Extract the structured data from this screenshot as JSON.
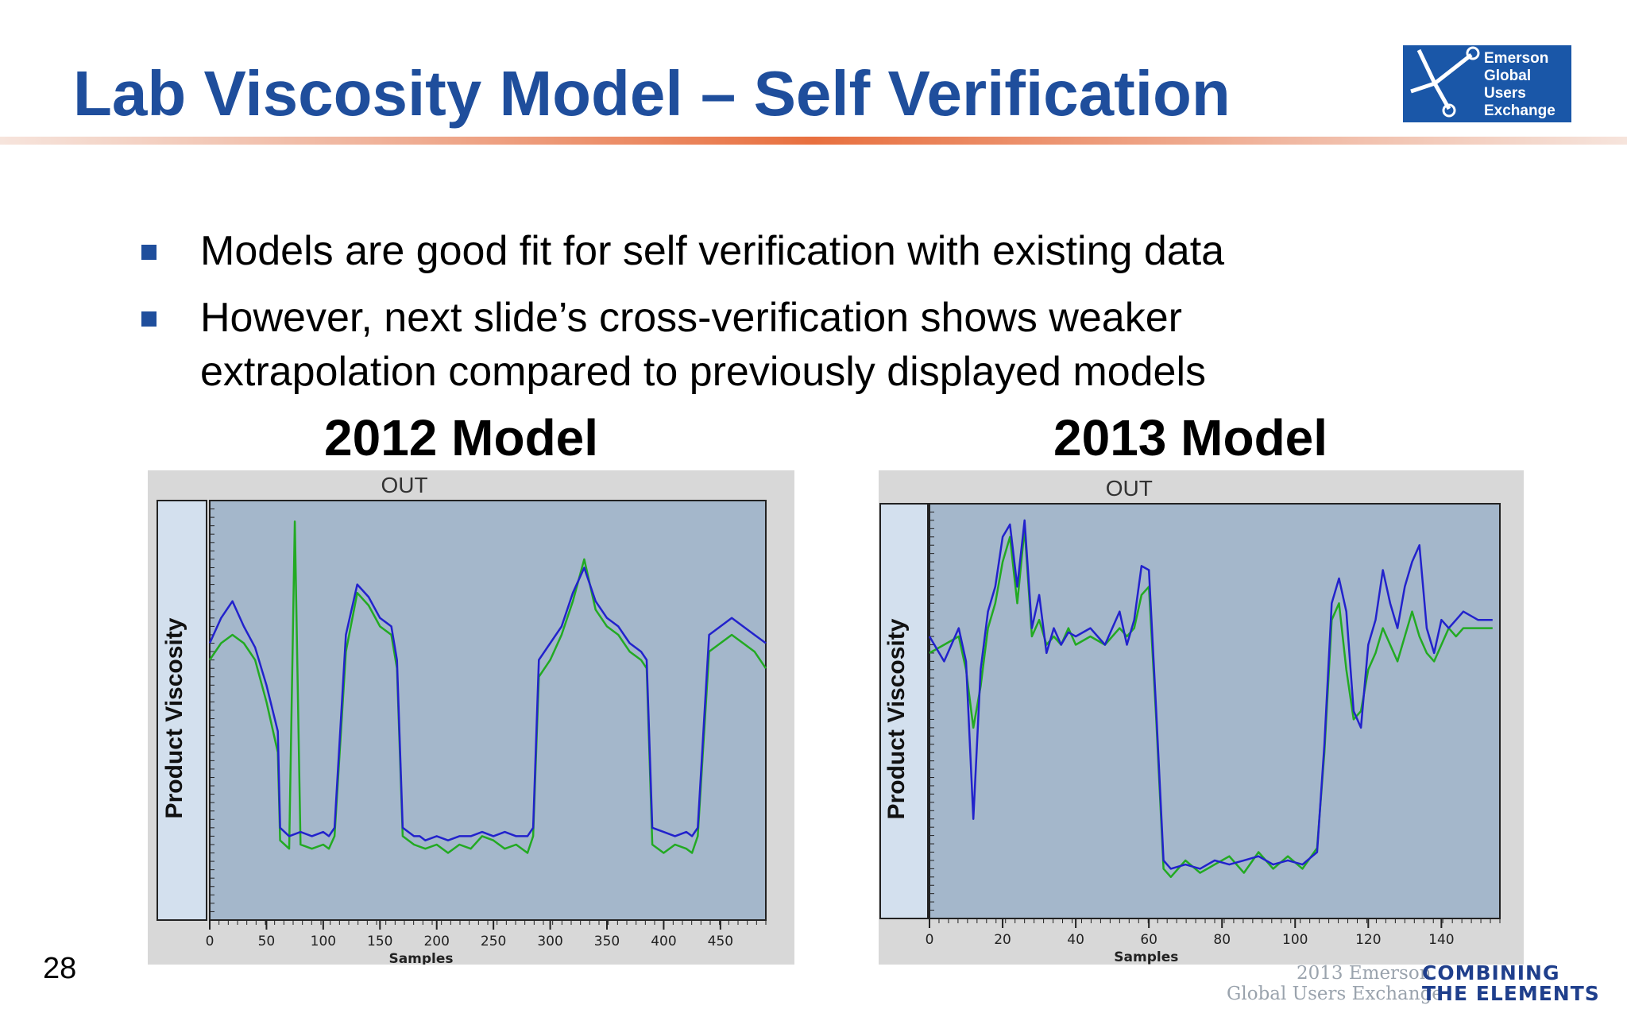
{
  "slide": {
    "title": "Lab Viscosity Model – Self Verification",
    "number": "28"
  },
  "logo": {
    "lines": [
      "Emerson",
      "Global",
      "Users",
      "Exchange"
    ],
    "color": "#1a57a8"
  },
  "bullets": [
    "Models are good fit for self verification with existing data",
    "However, next slide’s cross-verification shows weaker extrapolation compared to previously displayed models"
  ],
  "footer": {
    "line1": "2013 Emerson",
    "line2": "Global Users Exchange",
    "tag1": "COMBINING",
    "tag2": "THE ELEMENTS"
  },
  "chart_data": [
    {
      "type": "line",
      "heading": "2012 Model",
      "title": "OUT",
      "xlabel": "Samples",
      "ylabel": "Product Viscosity",
      "xlim": [
        0,
        490
      ],
      "ylim": [
        0,
        1
      ],
      "xticks": [
        0,
        50,
        100,
        150,
        200,
        250,
        300,
        350,
        400,
        450
      ],
      "grid": false,
      "background": "#a4b7cb",
      "series": [
        {
          "color": "#2222cc",
          "x": [
            0,
            10,
            20,
            30,
            40,
            50,
            60,
            62,
            70,
            80,
            90,
            100,
            105,
            110,
            120,
            130,
            140,
            150,
            160,
            165,
            170,
            180,
            185,
            190,
            200,
            210,
            220,
            230,
            240,
            250,
            260,
            270,
            280,
            285,
            290,
            300,
            310,
            320,
            330,
            340,
            350,
            360,
            370,
            380,
            385,
            390,
            400,
            410,
            420,
            425,
            430,
            440,
            450,
            460,
            470,
            480,
            490
          ],
          "y": [
            0.66,
            0.72,
            0.76,
            0.7,
            0.65,
            0.56,
            0.45,
            0.22,
            0.2,
            0.21,
            0.2,
            0.21,
            0.2,
            0.22,
            0.68,
            0.8,
            0.77,
            0.72,
            0.7,
            0.62,
            0.22,
            0.2,
            0.2,
            0.19,
            0.2,
            0.19,
            0.2,
            0.2,
            0.21,
            0.2,
            0.21,
            0.2,
            0.2,
            0.22,
            0.62,
            0.66,
            0.7,
            0.78,
            0.84,
            0.76,
            0.72,
            0.7,
            0.66,
            0.64,
            0.62,
            0.22,
            0.21,
            0.2,
            0.21,
            0.2,
            0.22,
            0.68,
            0.7,
            0.72,
            0.7,
            0.68,
            0.66
          ]
        },
        {
          "color": "#22aa22",
          "x": [
            0,
            10,
            20,
            30,
            40,
            50,
            60,
            62,
            70,
            75,
            80,
            90,
            100,
            105,
            110,
            120,
            130,
            140,
            150,
            160,
            165,
            170,
            180,
            190,
            200,
            210,
            220,
            230,
            240,
            250,
            260,
            270,
            280,
            285,
            290,
            300,
            310,
            320,
            330,
            340,
            350,
            360,
            370,
            380,
            385,
            390,
            400,
            410,
            420,
            425,
            430,
            440,
            450,
            460,
            470,
            480,
            490
          ],
          "y": [
            0.62,
            0.66,
            0.68,
            0.66,
            0.62,
            0.52,
            0.4,
            0.19,
            0.17,
            0.95,
            0.18,
            0.17,
            0.18,
            0.17,
            0.2,
            0.64,
            0.78,
            0.75,
            0.7,
            0.68,
            0.6,
            0.2,
            0.18,
            0.17,
            0.18,
            0.16,
            0.18,
            0.17,
            0.2,
            0.19,
            0.17,
            0.18,
            0.16,
            0.2,
            0.58,
            0.62,
            0.68,
            0.76,
            0.86,
            0.74,
            0.7,
            0.68,
            0.64,
            0.62,
            0.6,
            0.18,
            0.16,
            0.18,
            0.17,
            0.16,
            0.2,
            0.64,
            0.66,
            0.68,
            0.66,
            0.64,
            0.6
          ]
        }
      ]
    },
    {
      "type": "line",
      "heading": "2013 Model",
      "title": "OUT",
      "xlabel": "Samples",
      "ylabel": "Product Viscosity",
      "xlim": [
        0,
        156
      ],
      "ylim": [
        0,
        1
      ],
      "xticks": [
        0,
        20,
        40,
        60,
        80,
        100,
        120,
        140
      ],
      "grid": false,
      "background": "#a4b7cb",
      "series": [
        {
          "color": "#2222cc",
          "x": [
            0,
            4,
            8,
            10,
            12,
            14,
            16,
            18,
            20,
            22,
            24,
            26,
            28,
            30,
            32,
            34,
            36,
            38,
            40,
            44,
            48,
            52,
            54,
            56,
            58,
            60,
            62,
            64,
            66,
            70,
            74,
            78,
            82,
            86,
            90,
            94,
            98,
            102,
            106,
            108,
            110,
            112,
            114,
            116,
            118,
            120,
            122,
            124,
            126,
            128,
            130,
            132,
            134,
            136,
            138,
            140,
            142,
            144,
            146,
            150,
            154
          ],
          "y": [
            0.68,
            0.62,
            0.7,
            0.62,
            0.24,
            0.6,
            0.74,
            0.8,
            0.92,
            0.95,
            0.8,
            0.96,
            0.7,
            0.78,
            0.64,
            0.7,
            0.66,
            0.69,
            0.68,
            0.7,
            0.66,
            0.74,
            0.66,
            0.72,
            0.85,
            0.84,
            0.5,
            0.14,
            0.12,
            0.13,
            0.12,
            0.14,
            0.13,
            0.14,
            0.15,
            0.13,
            0.14,
            0.13,
            0.16,
            0.42,
            0.76,
            0.82,
            0.74,
            0.5,
            0.46,
            0.66,
            0.72,
            0.84,
            0.76,
            0.7,
            0.8,
            0.86,
            0.9,
            0.7,
            0.64,
            0.72,
            0.7,
            0.72,
            0.74,
            0.72,
            0.72
          ]
        },
        {
          "color": "#22aa22",
          "x": [
            0,
            4,
            8,
            10,
            12,
            14,
            16,
            18,
            20,
            22,
            24,
            26,
            28,
            30,
            32,
            34,
            36,
            38,
            40,
            44,
            48,
            52,
            54,
            56,
            58,
            60,
            62,
            64,
            66,
            70,
            74,
            78,
            82,
            86,
            90,
            94,
            98,
            102,
            106,
            108,
            110,
            112,
            114,
            116,
            118,
            120,
            122,
            124,
            126,
            128,
            130,
            132,
            134,
            136,
            138,
            140,
            142,
            144,
            146,
            150,
            154
          ],
          "y": [
            0.64,
            0.66,
            0.68,
            0.6,
            0.46,
            0.56,
            0.7,
            0.76,
            0.86,
            0.92,
            0.76,
            0.94,
            0.68,
            0.72,
            0.66,
            0.68,
            0.66,
            0.7,
            0.66,
            0.68,
            0.66,
            0.7,
            0.68,
            0.7,
            0.78,
            0.8,
            0.48,
            0.12,
            0.1,
            0.14,
            0.11,
            0.13,
            0.15,
            0.11,
            0.16,
            0.12,
            0.15,
            0.12,
            0.17,
            0.4,
            0.72,
            0.76,
            0.6,
            0.48,
            0.5,
            0.6,
            0.64,
            0.7,
            0.66,
            0.62,
            0.68,
            0.74,
            0.68,
            0.64,
            0.62,
            0.66,
            0.7,
            0.68,
            0.7,
            0.7,
            0.7
          ]
        }
      ]
    }
  ]
}
